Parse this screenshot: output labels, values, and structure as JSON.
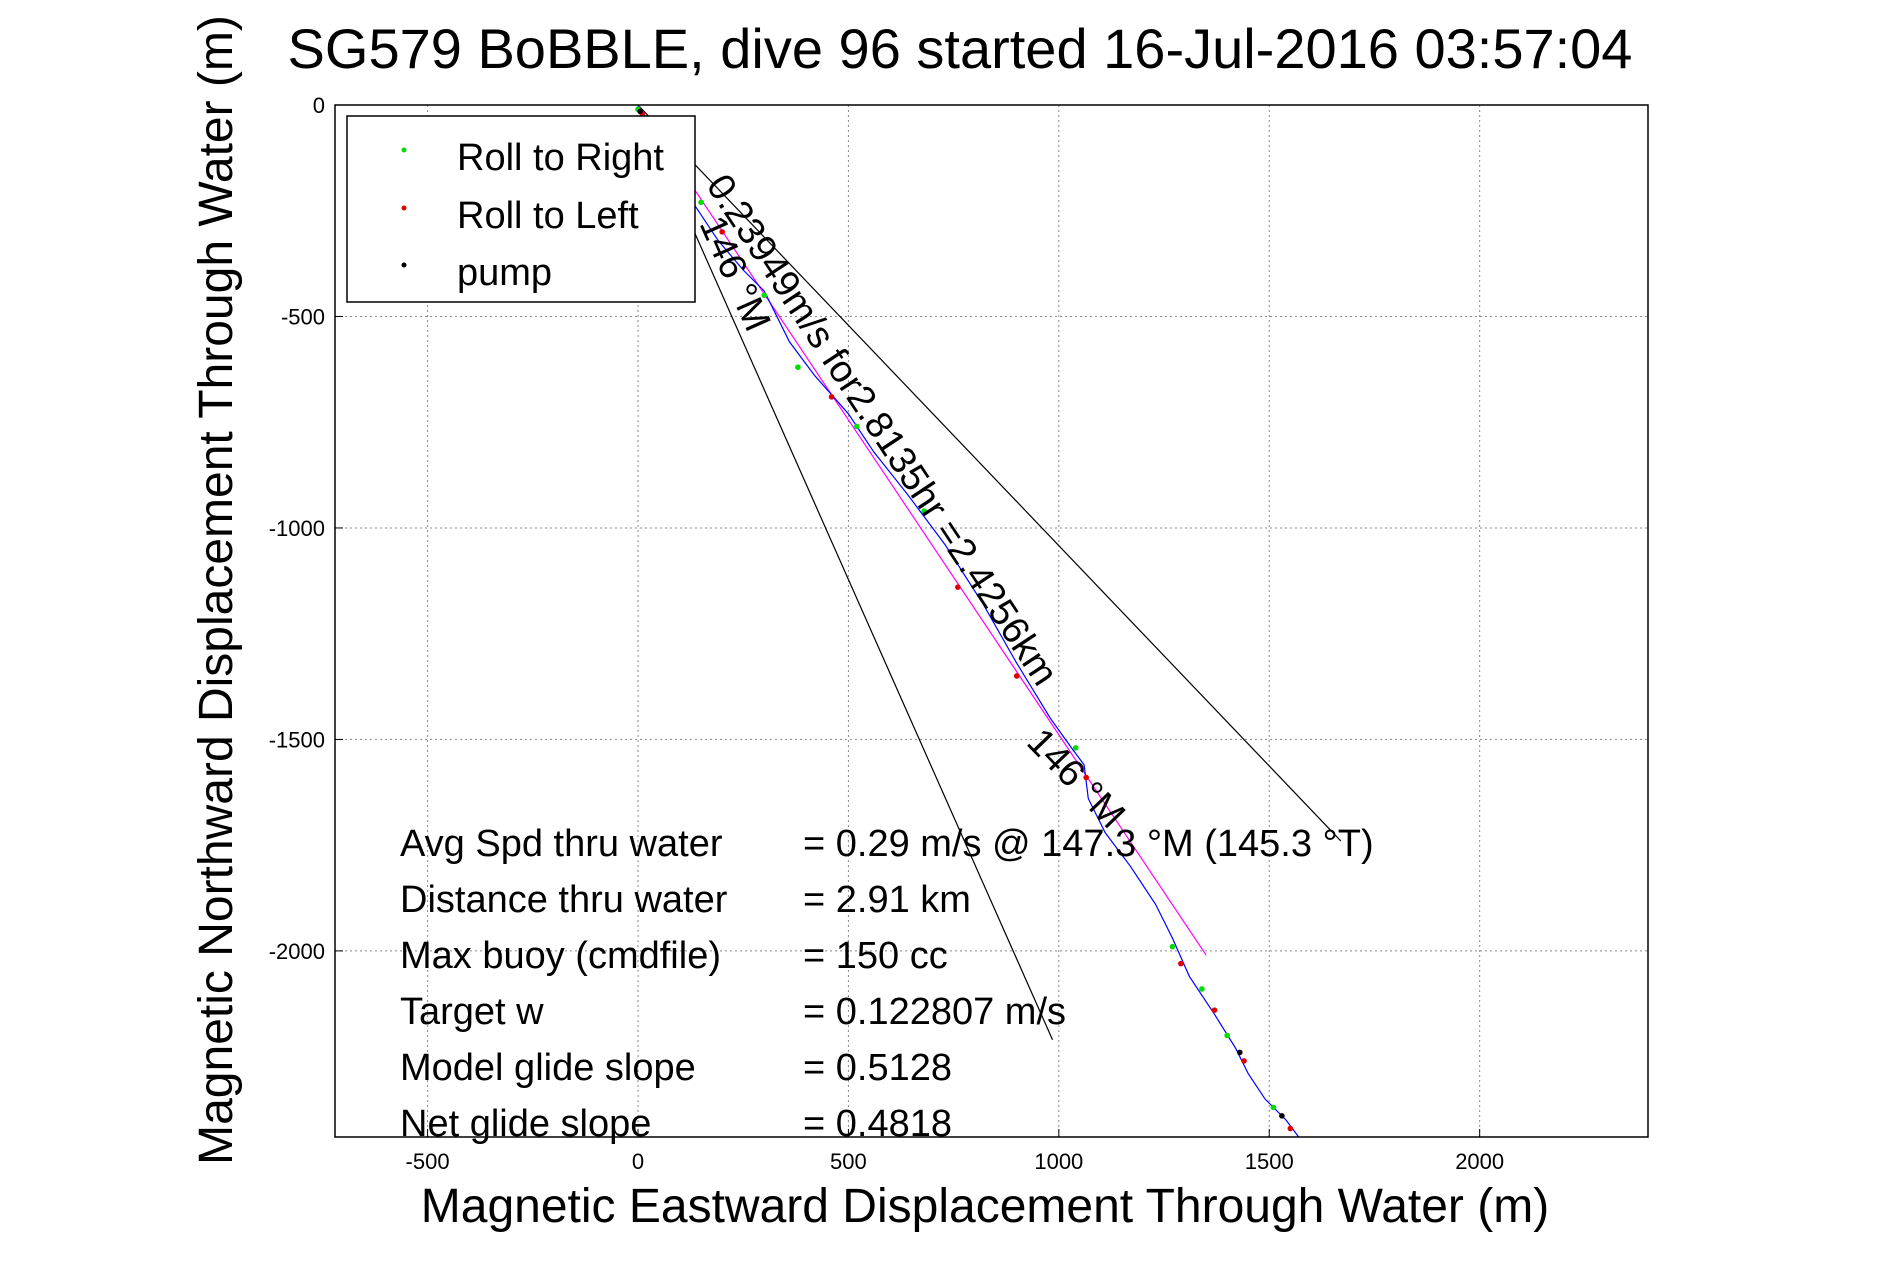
{
  "chart_data": {
    "type": "scatter",
    "title": "SG579 BoBBLE, dive 96 started 16-Jul-2016 03:57:04",
    "xlabel": "Magnetic Eastward Displacement Through Water (m)",
    "ylabel": "Magnetic Northward Displacement Through Water (m)",
    "xlim": [
      -720,
      2400
    ],
    "ylim": [
      -2440,
      0
    ],
    "xticks": [
      -500,
      0,
      500,
      1000,
      1500,
      2000
    ],
    "yticks": [
      0,
      -500,
      -1000,
      -1500,
      -2000
    ],
    "grid": true,
    "legend": {
      "placement": "top-left",
      "entries": [
        {
          "label": "Roll to Right",
          "color": "#00dd00"
        },
        {
          "label": "Roll to Left",
          "color": "#e00000"
        },
        {
          "label": "pump",
          "color": "#000000"
        }
      ]
    },
    "track": {
      "color": "#0000ff",
      "points": [
        [
          0,
          0
        ],
        [
          20,
          -60
        ],
        [
          70,
          -150
        ],
        [
          130,
          -230
        ],
        [
          190,
          -320
        ],
        [
          250,
          -390
        ],
        [
          300,
          -440
        ],
        [
          360,
          -560
        ],
        [
          420,
          -640
        ],
        [
          500,
          -730
        ],
        [
          560,
          -820
        ],
        [
          640,
          -920
        ],
        [
          730,
          -1040
        ],
        [
          820,
          -1180
        ],
        [
          900,
          -1320
        ],
        [
          980,
          -1450
        ],
        [
          1030,
          -1520
        ],
        [
          1060,
          -1560
        ],
        [
          1070,
          -1640
        ],
        [
          1110,
          -1720
        ],
        [
          1170,
          -1800
        ],
        [
          1230,
          -1890
        ],
        [
          1270,
          -1970
        ],
        [
          1310,
          -2060
        ],
        [
          1370,
          -2150
        ],
        [
          1420,
          -2230
        ],
        [
          1450,
          -2290
        ],
        [
          1490,
          -2350
        ],
        [
          1540,
          -2400
        ],
        [
          1570,
          -2440
        ]
      ]
    },
    "drift_line": {
      "color": "#ff00ff",
      "points": [
        [
          0,
          0
        ],
        [
          1350,
          -2010
        ]
      ]
    },
    "cone_lines": [
      {
        "color": "#000000",
        "points": [
          [
            0,
            0
          ],
          [
            1670,
            -1740
          ]
        ]
      },
      {
        "color": "#000000",
        "points": [
          [
            0,
            0
          ],
          [
            985,
            -2210
          ]
        ]
      }
    ],
    "roll_right_points": [
      [
        0,
        -10
      ],
      [
        150,
        -230
      ],
      [
        300,
        -450
      ],
      [
        380,
        -620
      ],
      [
        520,
        -760
      ],
      [
        680,
        -960
      ],
      [
        1040,
        -1520
      ],
      [
        1270,
        -1990
      ],
      [
        1340,
        -2090
      ],
      [
        1400,
        -2200
      ],
      [
        1510,
        -2370
      ]
    ],
    "roll_left_points": [
      [
        10,
        -20
      ],
      [
        200,
        -300
      ],
      [
        460,
        -690
      ],
      [
        760,
        -1140
      ],
      [
        900,
        -1350
      ],
      [
        1065,
        -1590
      ],
      [
        1290,
        -2030
      ],
      [
        1370,
        -2140
      ],
      [
        1440,
        -2260
      ],
      [
        1550,
        -2420
      ]
    ],
    "pump_points": [
      [
        5,
        -15
      ],
      [
        1430,
        -2240
      ],
      [
        1530,
        -2390
      ]
    ],
    "annotations": [
      {
        "text": "0.23949m/s for2.8135hr =2.4256km",
        "x": 160,
        "y": -190,
        "rotation": 56.5
      },
      {
        "text": "146 °M",
        "x": 145,
        "y": -280,
        "rotation": 66
      },
      {
        "text": "146 °M",
        "x": 920,
        "y": -1510,
        "rotation": 46
      }
    ],
    "stats": [
      {
        "label": "Avg Spd thru water",
        "value": "=  0.29 m/s @  147.3 °M (145.3 °T)"
      },
      {
        "label": "Distance thru water",
        "value": "=  2.91 km"
      },
      {
        "label": "Max buoy (cmdfile)",
        "value": "= 150 cc"
      },
      {
        "label": "Target w",
        "value": "= 0.122807 m/s"
      },
      {
        "label": "Model glide slope",
        "value": "= 0.5128"
      },
      {
        "label": "Net glide slope",
        "value": "= 0.4818"
      }
    ]
  }
}
